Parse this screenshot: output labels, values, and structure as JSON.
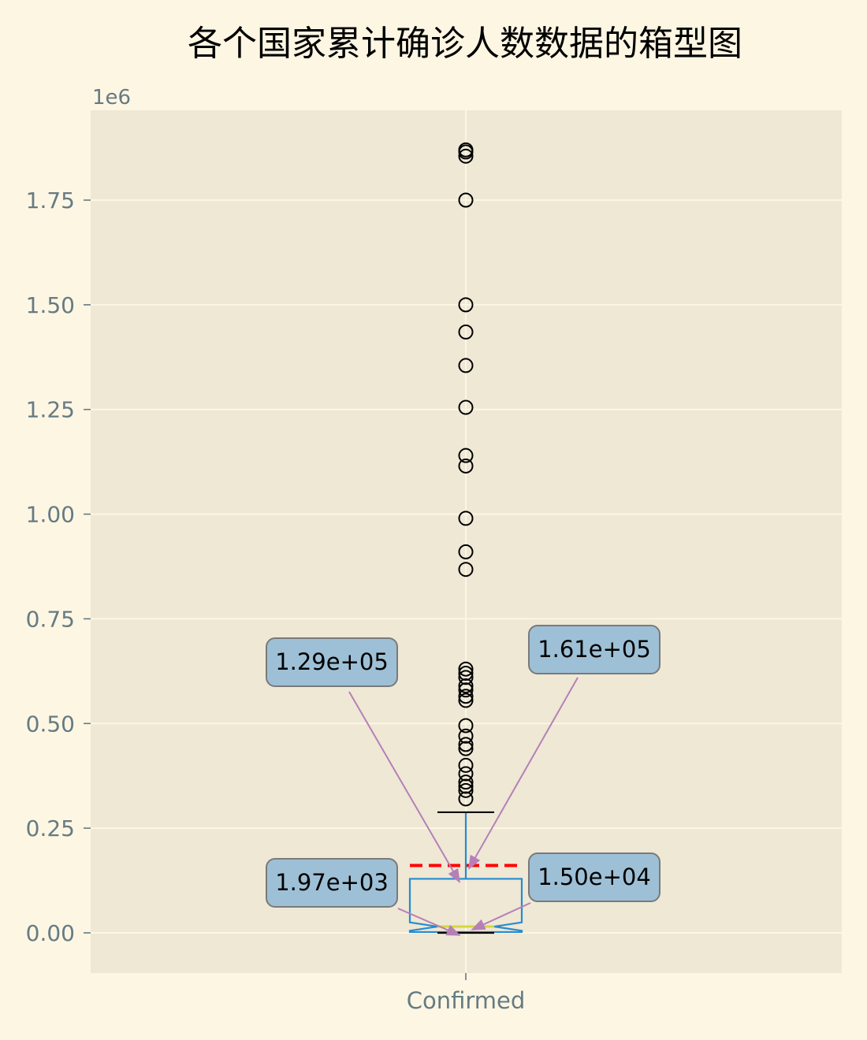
{
  "colors": {
    "page_bg": "#fdf6e3",
    "plot_bg": "#eee8d5",
    "grid": "#fdf6e3",
    "axis_text": "#657b83",
    "box": "#268bd2",
    "median": "#d5d83a",
    "mean": "#ff0000",
    "annotation_fill": "#9ec0d6",
    "annotation_edge": "#7a7a7a",
    "arrow": "#b77fb8",
    "title": "#000000"
  },
  "chart_data": {
    "type": "boxplot",
    "title": "各个国家累计确诊人数数据的箱型图",
    "offset_text": "1e6",
    "categories": [
      "Confirmed"
    ],
    "ylim": [
      -0.095,
      1.96
    ],
    "yticks": [
      0.0,
      0.25,
      0.5,
      0.75,
      1.0,
      1.25,
      1.5,
      1.75
    ],
    "ytick_labels": [
      "0.00",
      "0.25",
      "0.50",
      "0.75",
      "1.00",
      "1.25",
      "1.50",
      "1.75"
    ],
    "grid": true,
    "notched": true,
    "box": {
      "whisker_low": 0.0,
      "q1": 0.00197,
      "median": 0.015,
      "q3": 0.129,
      "whisker_high": 0.288,
      "mean": 0.161,
      "notch_low": 0.005,
      "notch_high": 0.025,
      "outliers": [
        1.87,
        1.865,
        1.855,
        1.75,
        1.5,
        1.435,
        1.355,
        1.255,
        1.14,
        1.115,
        0.99,
        0.91,
        0.868,
        0.63,
        0.62,
        0.61,
        0.59,
        0.58,
        0.565,
        0.555,
        0.495,
        0.47,
        0.45,
        0.44,
        0.4,
        0.38,
        0.36,
        0.35,
        0.34,
        0.32
      ]
    },
    "annotations": [
      {
        "label": "1.29e+05",
        "target": "q3",
        "y": 129000,
        "position": "upper-left"
      },
      {
        "label": "1.61e+05",
        "target": "mean",
        "y": 161000,
        "position": "upper-right"
      },
      {
        "label": "1.97e+03",
        "target": "q1",
        "y": 1970,
        "position": "lower-left"
      },
      {
        "label": "1.50e+04",
        "target": "median",
        "y": 15000,
        "position": "lower-right"
      }
    ]
  }
}
